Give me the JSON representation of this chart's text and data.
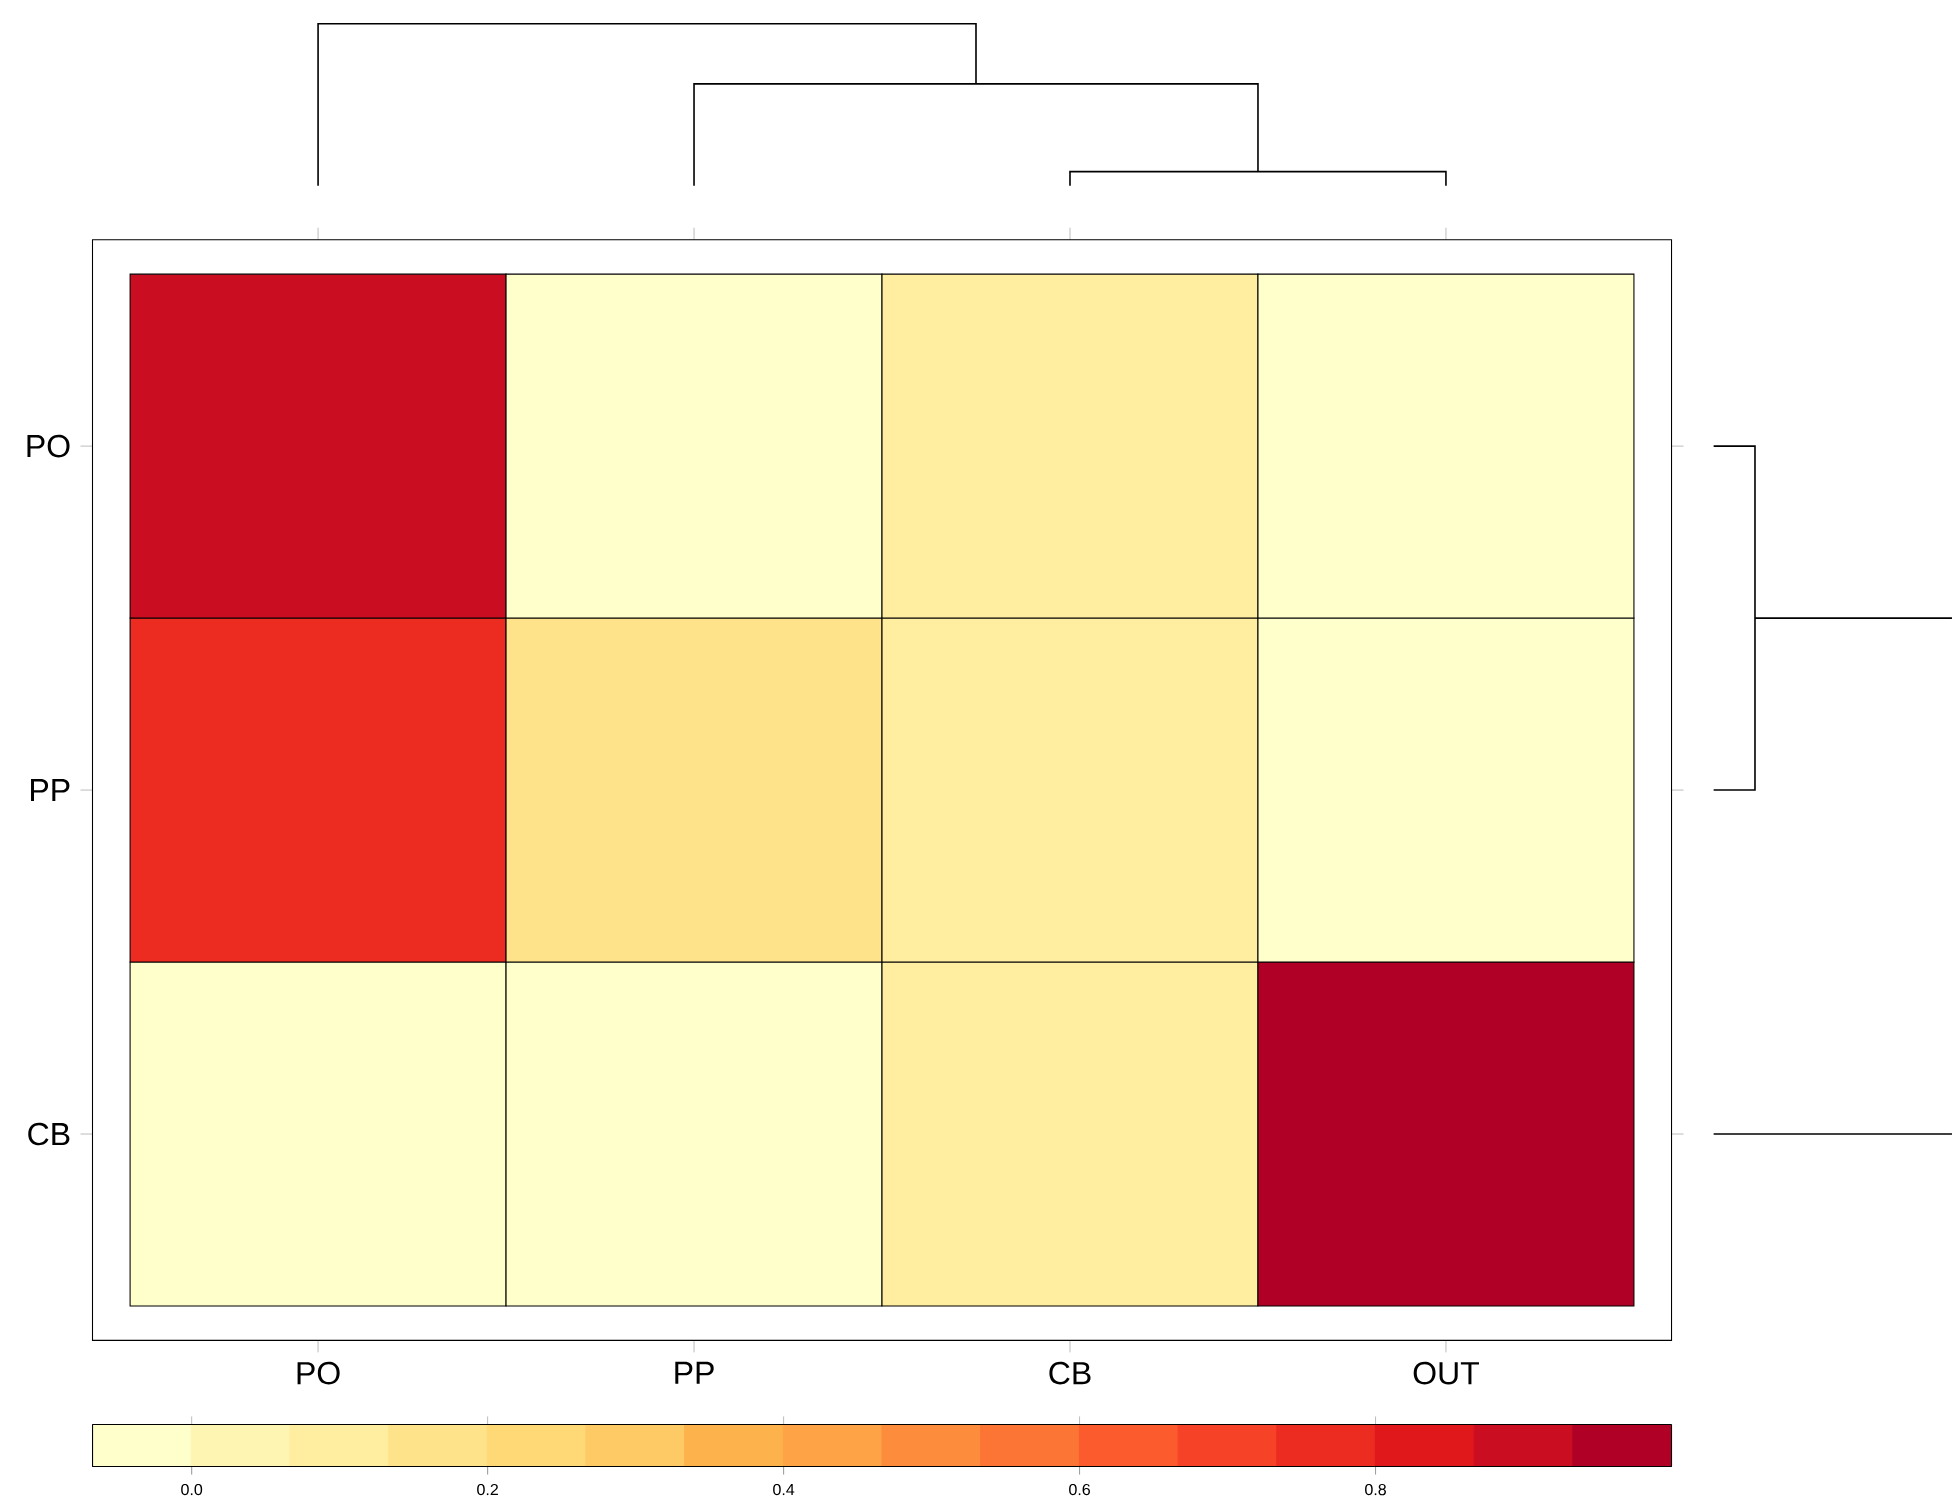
{
  "chart_data": {
    "type": "heatmap",
    "categories": [
      "PO",
      "PP",
      "CB",
      "OUT"
    ],
    "y_categories": [
      "PO",
      "PP",
      "CB"
    ],
    "cells": [
      [
        0.9,
        -0.03,
        0.1,
        -0.03
      ],
      [
        0.75,
        0.17,
        0.1,
        -0.03
      ],
      [
        -0.03,
        -0.03,
        0.1,
        0.97
      ]
    ],
    "clim": [
      -0.067,
      1.0
    ],
    "cticks": [
      {
        "value": 0,
        "label": "0.0"
      },
      {
        "value": 0.2,
        "label": "0.2"
      },
      {
        "value": 0.4,
        "label": "0.4"
      },
      {
        "value": 0.6,
        "label": "0.6"
      },
      {
        "value": 0.8,
        "label": "0.8"
      }
    ]
  }
}
